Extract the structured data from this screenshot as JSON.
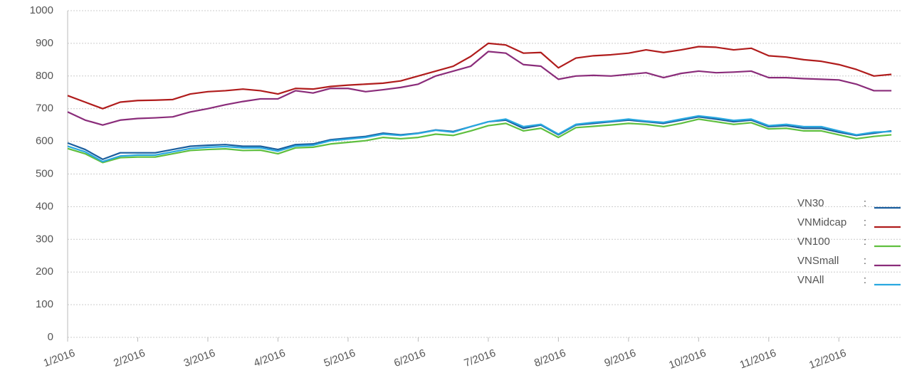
{
  "chart_data": {
    "type": "line",
    "categories": [
      "1/2016",
      null,
      null,
      null,
      "2/2016",
      null,
      null,
      null,
      "3/2016",
      null,
      null,
      null,
      "4/2016",
      null,
      null,
      null,
      "5/2016",
      null,
      null,
      null,
      "6/2016",
      null,
      null,
      null,
      "7/2016",
      null,
      null,
      null,
      "8/2016",
      null,
      null,
      null,
      "9/2016",
      null,
      null,
      null,
      "10/2016",
      null,
      null,
      null,
      "11/2016",
      null,
      null,
      null,
      "12/2016",
      null,
      null,
      null
    ],
    "series": [
      {
        "name": "VN30",
        "color": "#1a5e9e",
        "values": [
          595,
          575,
          545,
          565,
          565,
          565,
          575,
          585,
          588,
          590,
          585,
          585,
          575,
          590,
          592,
          605,
          610,
          615,
          625,
          620,
          625,
          635,
          630,
          645,
          660,
          665,
          640,
          650,
          620,
          650,
          655,
          660,
          665,
          660,
          655,
          665,
          675,
          668,
          660,
          665,
          645,
          648,
          640,
          640,
          628,
          618,
          625,
          632
        ]
      },
      {
        "name": "VNMidcap",
        "color": "#b01c1c",
        "values": [
          740,
          720,
          700,
          720,
          725,
          726,
          728,
          745,
          752,
          755,
          760,
          755,
          745,
          762,
          760,
          768,
          772,
          775,
          778,
          785,
          800,
          815,
          830,
          860,
          900,
          895,
          870,
          872,
          825,
          855,
          862,
          865,
          870,
          880,
          872,
          880,
          890,
          888,
          880,
          885,
          862,
          858,
          850,
          845,
          835,
          820,
          800,
          805
        ]
      },
      {
        "name": "VN100",
        "color": "#5fbf3f",
        "values": [
          578,
          562,
          535,
          550,
          552,
          552,
          562,
          572,
          575,
          577,
          572,
          573,
          562,
          580,
          582,
          592,
          597,
          602,
          612,
          608,
          612,
          622,
          618,
          632,
          648,
          655,
          632,
          640,
          612,
          642,
          646,
          650,
          655,
          652,
          645,
          655,
          668,
          660,
          652,
          657,
          638,
          640,
          632,
          632,
          620,
          608,
          615,
          620
        ]
      },
      {
        "name": "VNSmall",
        "color": "#8a2c7a",
        "values": [
          690,
          665,
          650,
          665,
          670,
          672,
          675,
          690,
          700,
          712,
          722,
          730,
          730,
          755,
          748,
          762,
          762,
          752,
          758,
          765,
          775,
          800,
          815,
          830,
          875,
          870,
          835,
          830,
          790,
          800,
          802,
          800,
          805,
          810,
          795,
          808,
          815,
          810,
          812,
          815,
          795,
          795,
          792,
          790,
          788,
          775,
          755,
          755
        ]
      },
      {
        "name": "VNAll",
        "color": "#29a8e0",
        "values": [
          585,
          568,
          538,
          555,
          558,
          558,
          568,
          578,
          582,
          584,
          580,
          580,
          570,
          586,
          588,
          602,
          607,
          612,
          622,
          618,
          624,
          634,
          628,
          645,
          660,
          668,
          645,
          652,
          622,
          652,
          658,
          662,
          668,
          662,
          658,
          668,
          678,
          672,
          664,
          668,
          648,
          652,
          645,
          645,
          632,
          620,
          628,
          630
        ]
      }
    ],
    "ylim": [
      0,
      1000
    ],
    "yticks": [
      0,
      100,
      200,
      300,
      400,
      500,
      600,
      700,
      800,
      900,
      1000
    ],
    "grid": true,
    "legend": "right",
    "legend_separator": ":"
  }
}
